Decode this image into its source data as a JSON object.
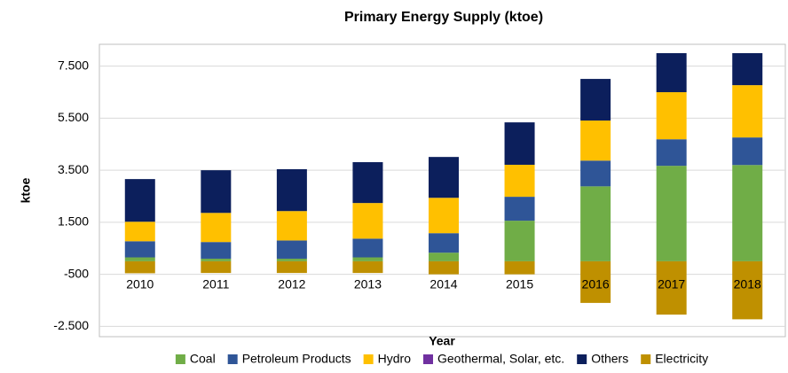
{
  "chart_data": {
    "type": "stacked_bar",
    "title": "Primary Energy Supply (ktoe)",
    "x_label": "Year",
    "y_label": "ktoe",
    "categories": [
      "2010",
      "2011",
      "2012",
      "2013",
      "2014",
      "2015",
      "2016",
      "2017",
      "2018"
    ],
    "series": [
      {
        "name": "Coal",
        "color": "#70ad47",
        "values": [
          150,
          100,
          100,
          150,
          330,
          1560,
          2880,
          3670,
          3700
        ]
      },
      {
        "name": "Petroleum Products",
        "color": "#2f5597",
        "values": [
          620,
          640,
          700,
          720,
          750,
          920,
          990,
          1020,
          1060
        ]
      },
      {
        "name": "Hydro",
        "color": "#ffc000",
        "values": [
          750,
          1120,
          1130,
          1370,
          1360,
          1230,
          1540,
          1810,
          2010
        ]
      },
      {
        "name": "Geothermal, Solar, etc.",
        "color": "#7030a0",
        "values": [
          0,
          0,
          0,
          0,
          0,
          0,
          0,
          0,
          0
        ]
      },
      {
        "name": "Others",
        "color": "#0c1f5c",
        "values": [
          1640,
          1640,
          1610,
          1570,
          1570,
          1630,
          1600,
          1500,
          1230
        ]
      },
      {
        "name": "Electricity",
        "color": "#bf9000",
        "values": [
          -460,
          -450,
          -450,
          -450,
          -500,
          -500,
          -1600,
          -2050,
          -2230
        ]
      }
    ],
    "ylim": [
      -3000,
      8000
    ],
    "yticks": [
      {
        "value": -2500,
        "label": "-2.500"
      },
      -500,
      {
        "value": 1500,
        "label": "1.500"
      },
      {
        "value": 3500,
        "label": "3.500"
      },
      {
        "value": 5500,
        "label": "5.500"
      },
      {
        "value": 7500,
        "label": "7.500"
      }
    ],
    "grid": true,
    "legend": "bottom"
  }
}
